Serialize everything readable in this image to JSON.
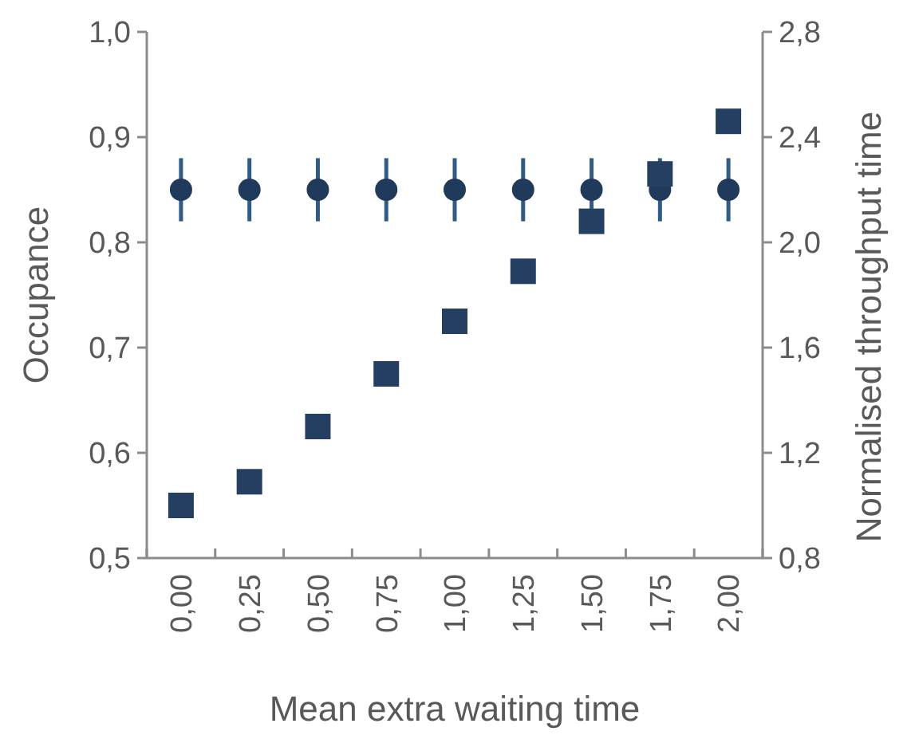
{
  "chart_data": {
    "type": "scatter",
    "xlabel": "Mean extra waiting time",
    "ylabel": "Occupance",
    "y2label": "Normalised throughput time",
    "categories": [
      "0,00",
      "0,25",
      "0,50",
      "0,75",
      "1,00",
      "1,25",
      "1,50",
      "1,75",
      "2,00"
    ],
    "ylim": [
      0.5,
      1.0
    ],
    "yticks": [
      {
        "value": 0.5,
        "label": "0,5"
      },
      {
        "value": 0.6,
        "label": "0,6"
      },
      {
        "value": 0.7,
        "label": "0,7"
      },
      {
        "value": 0.8,
        "label": "0,8"
      },
      {
        "value": 0.9,
        "label": "0,9"
      },
      {
        "value": 1.0,
        "label": "1,0"
      }
    ],
    "y2lim": [
      0.8,
      2.8
    ],
    "y2ticks": [
      {
        "value": 0.8,
        "label": "0,8"
      },
      {
        "value": 1.2,
        "label": "1,2"
      },
      {
        "value": 1.6,
        "label": "1,6"
      },
      {
        "value": 2.0,
        "label": "2,0"
      },
      {
        "value": 2.4,
        "label": "2,4"
      },
      {
        "value": 2.8,
        "label": "2,8"
      }
    ],
    "series": [
      {
        "color": "#203a5c",
        "marker": "circle",
        "values": [
          0.85,
          0.85,
          0.85,
          0.85,
          0.85,
          0.85,
          0.85,
          0.85,
          0.85
        ],
        "errors": [
          0.03,
          0.03,
          0.03,
          0.03,
          0.03,
          0.03,
          0.03,
          0.03,
          0.03
        ]
      },
      {
        "color": "#243f62",
        "marker": "square",
        "axis": "y2",
        "values": [
          1.0,
          1.09,
          1.3,
          1.5,
          1.7,
          1.89,
          2.08,
          2.26,
          2.46
        ]
      }
    ]
  }
}
